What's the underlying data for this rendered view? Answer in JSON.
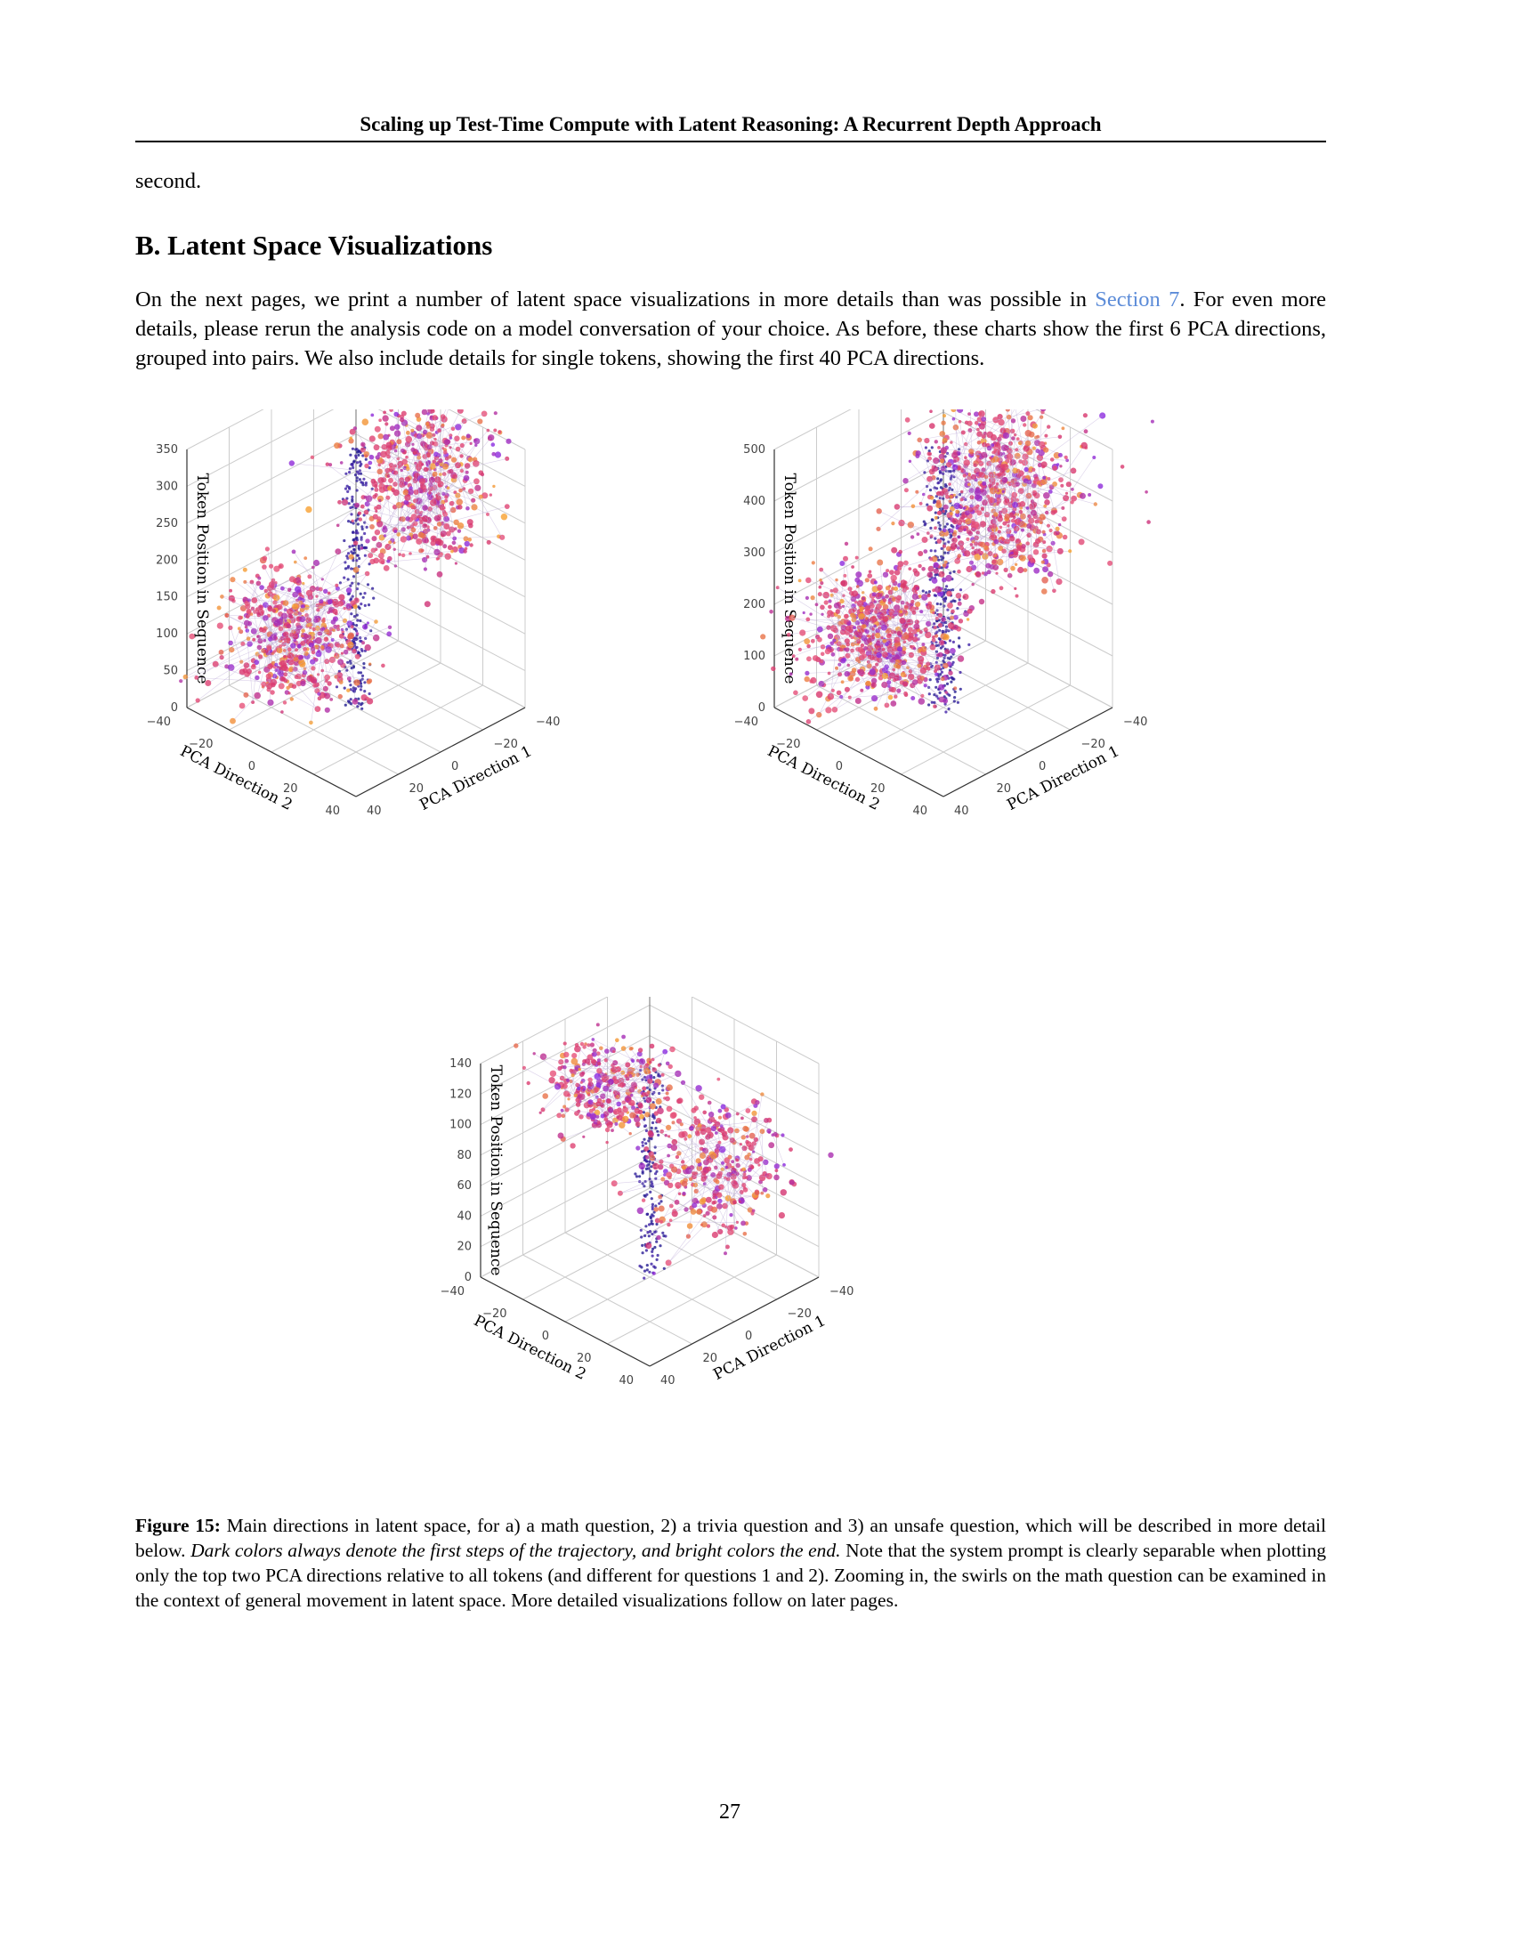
{
  "header": {
    "title": "Scaling up Test-Time Compute with Latent Reasoning: A Recurrent Depth Approach"
  },
  "prev_text": "second.",
  "section": {
    "title": "B. Latent Space Visualizations",
    "para_before": "On the next pages, we print a number of latent space visualizations in more details than was possible in ",
    "link": "Section 7",
    "para_after": ". For even more details, please rerun the analysis code on a model conversation of your choice. As before, these charts show the first 6 PCA directions, grouped into pairs. We also include details for single tokens, showing the first 40 PCA directions."
  },
  "caption": {
    "label": "Figure 15:",
    "text1": " Main directions in latent space, for a) a math question, 2) a trivia question and 3) an unsafe question, which will be described in more detail below. ",
    "italic": "Dark colors always denote the first steps of the trajectory, and bright colors the end.",
    "text2": " Note that the system prompt is clearly separable when plotting only the top two PCA directions relative to all tokens (and different for questions 1 and 2). Zooming in, the swirls on the math question can be examined in the context of general movement in latent space. More detailed visualizations follow on later pages."
  },
  "page_number": "27",
  "colors": {
    "dark": "#1e1b8c",
    "mid": "#8a2be2",
    "pink": "#d6336c",
    "orange": "#f7a130",
    "grid": "#cccccc"
  },
  "chart_data": [
    {
      "type": "scatter",
      "projection": "3d",
      "title": "",
      "xlabel": "PCA Direction 1",
      "ylabel": "PCA Direction 2",
      "zlabel": "Token Position in Sequence",
      "xticks": [
        "−40",
        "−20",
        "0",
        "20",
        "40"
      ],
      "yticks": [
        "−40",
        "−20",
        "0",
        "20",
        "40"
      ],
      "zticks": [
        "0",
        "50",
        "100",
        "150",
        "200",
        "250",
        "300",
        "350"
      ],
      "xlim": [
        -40,
        40
      ],
      "ylim": [
        -40,
        40
      ],
      "zlim": [
        0,
        350
      ],
      "grid": true,
      "clusters": [
        {
          "x": 0,
          "y": 0,
          "z": [
            0,
            350
          ],
          "spread": 2,
          "color": "dark",
          "n": 260
        },
        {
          "x": 5,
          "y": -25,
          "z": [
            0,
            130
          ],
          "spread": 12,
          "color": "mixed",
          "n": 520
        },
        {
          "x": -30,
          "y": 0,
          "z": [
            170,
            340
          ],
          "spread": 12,
          "color": "mixed",
          "n": 520
        }
      ]
    },
    {
      "type": "scatter",
      "projection": "3d",
      "title": "",
      "xlabel": "PCA Direction 1",
      "ylabel": "PCA Direction 2",
      "zlabel": "Token Position in Sequence",
      "xticks": [
        "−40",
        "−20",
        "0",
        "20",
        "40"
      ],
      "yticks": [
        "−40",
        "−20",
        "0",
        "20",
        "40"
      ],
      "zticks": [
        "0",
        "100",
        "200",
        "300",
        "400",
        "500"
      ],
      "xlim": [
        -40,
        40
      ],
      "ylim": [
        -40,
        40
      ],
      "zlim": [
        0,
        500
      ],
      "grid": true,
      "clusters": [
        {
          "x": 0,
          "y": 0,
          "z": [
            0,
            500
          ],
          "spread": 3,
          "color": "dark",
          "n": 320
        },
        {
          "x": 5,
          "y": -25,
          "z": [
            0,
            200
          ],
          "spread": 12,
          "color": "mixed",
          "n": 650
        },
        {
          "x": -25,
          "y": 0,
          "z": [
            220,
            500
          ],
          "spread": 14,
          "color": "mixed",
          "n": 700
        }
      ]
    },
    {
      "type": "scatter",
      "projection": "3d",
      "title": "",
      "xlabel": "PCA Direction 1",
      "ylabel": "PCA Direction 2",
      "zlabel": "Token Position in Sequence",
      "xticks": [
        "−40",
        "−20",
        "0",
        "20",
        "40"
      ],
      "yticks": [
        "−40",
        "−20",
        "0",
        "20",
        "40"
      ],
      "zticks": [
        "0",
        "20",
        "40",
        "60",
        "80",
        "100",
        "120",
        "140"
      ],
      "xlim": [
        -40,
        40
      ],
      "ylim": [
        -40,
        40
      ],
      "zlim": [
        0,
        140
      ],
      "grid": true,
      "clusters": [
        {
          "x": 0,
          "y": 0,
          "z": [
            0,
            140
          ],
          "spread": 2,
          "color": "dark",
          "n": 180
        },
        {
          "x": 0,
          "y": -20,
          "z": [
            90,
            130
          ],
          "spread": 10,
          "color": "mixed",
          "n": 300
        },
        {
          "x": -25,
          "y": 5,
          "z": [
            25,
            90
          ],
          "spread": 12,
          "color": "mixed",
          "n": 340
        }
      ]
    }
  ]
}
